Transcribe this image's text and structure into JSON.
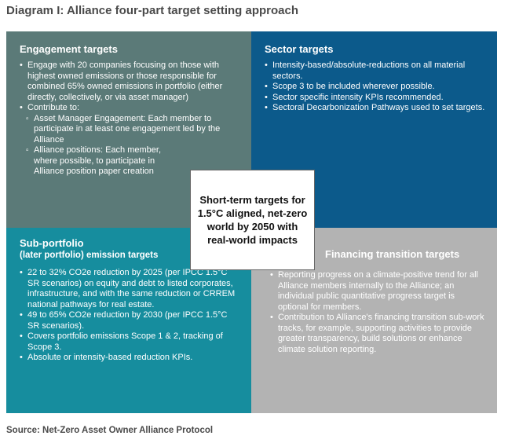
{
  "title": "Diagram I: Alliance four-part target setting approach",
  "engagement": {
    "heading": "Engagement targets",
    "items": [
      "Engage with 20 companies focusing on those with highest owned emissions or those responsible for combined 65% owned emissions in portfolio (either directly, collectively, or via asset manager)",
      "Contribute to:"
    ],
    "subitems": [
      "Asset Manager Engagement: Each member to participate in at least one engagement led by the Alliance",
      "Alliance positions: Each member, where possible, to participate in Alliance position paper creation"
    ]
  },
  "sector": {
    "heading": "Sector targets",
    "items": [
      "Intensity-based/absolute-reductions on all material sectors.",
      "Scope 3 to be included wherever possible.",
      "Sector specific intensity KPIs recommended.",
      "Sectoral Decarbonization Pathways used to set targets."
    ]
  },
  "subportfolio": {
    "heading": "Sub-portfolio",
    "subheading": "(later portfolio) emission targets",
    "items": [
      "22 to 32% CO2e reduction by 2025 (per IPCC 1.5°C SR scenarios) on equity and debt to listed corporates, infrastructure, and with the same reduction or CRREM national pathways for real estate.",
      "49 to 65% CO2e reduction by 2030 (per IPCC 1.5°C SR scenarios).",
      "Covers portfolio emissions Scope 1 & 2, tracking of Scope 3.",
      "Absolute or intensity-based reduction KPIs."
    ]
  },
  "financing": {
    "heading": "Financing transition targets",
    "items": [
      "Reporting progress on a climate-positive trend for all Alliance members internally to the Alliance; an individual public quantitative progress target is optional for members.",
      "Contribution to Alliance's financing transition sub-work tracks, for example, supporting activities to provide greater transparency, build solutions or enhance climate solution reporting."
    ]
  },
  "center": {
    "text": "Short-term targets for 1.5°C aligned, net-zero world by 2050 with real-world impacts"
  },
  "source": "Source: Net-Zero Asset Owner Alliance Protocol",
  "colors": {
    "engagement": "#5b7a78",
    "sector": "#0c5a8b",
    "subportfolio": "#168d9e",
    "financing": "#b3b3b3"
  }
}
